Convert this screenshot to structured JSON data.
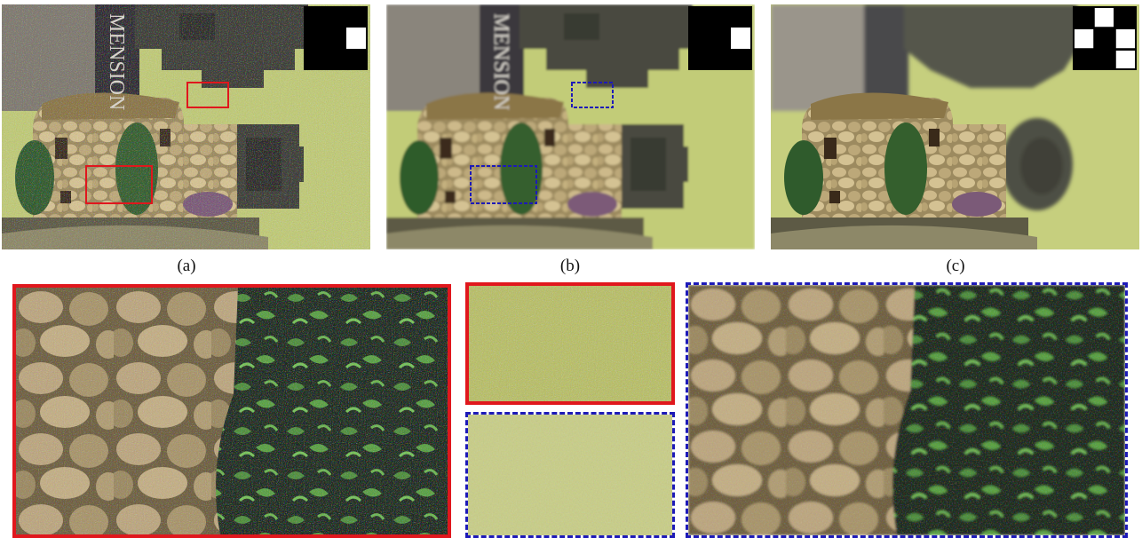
{
  "figure": {
    "captions": {
      "a": "(a)",
      "b": "(b)",
      "c": "(c)"
    },
    "panel_a_text": "MENSION",
    "panel_b_text": "MENSION",
    "colors": {
      "red_box": "#e0171d",
      "blue_box": "#1d1ab8",
      "background_green": "#c2cc78"
    }
  }
}
